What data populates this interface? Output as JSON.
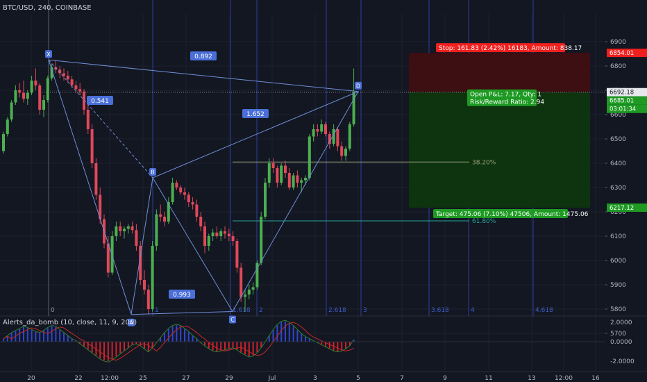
{
  "header": {
    "title": "BTC/USD, 240, COINBASE"
  },
  "colors": {
    "bg": "#131722",
    "grid": "#1e2230",
    "up": "#4caf50",
    "down": "#e0485a",
    "harmonic": "#6f8fd6",
    "fib_vertical": "#2d3fa0",
    "stop_zone": "#3d0e12",
    "target_zone": "#0d330f",
    "stop_tag": "#f0201e",
    "target_tag": "#1e9a23"
  },
  "chart_data": [
    {
      "type": "candlestick",
      "title": "BTC/USD, 240, COINBASE",
      "y_axis": {
        "ticks": [
          6900,
          6800,
          6700,
          6600,
          6500,
          6400,
          6300,
          6200,
          6100,
          6000,
          5900,
          5800,
          5700
        ],
        "range": [
          5700,
          6960
        ]
      },
      "x_axis": {
        "ticks": [
          "20",
          "22",
          "12:00",
          "25",
          "27",
          "29",
          "Jul",
          "3",
          "5",
          "7",
          "9",
          "11",
          "13",
          "12:00",
          "16"
        ]
      },
      "price_tags": [
        {
          "value": "6854.01",
          "style": "stop"
        },
        {
          "value": "6692.18",
          "style": "last"
        },
        {
          "value": "6685.01",
          "style": "current"
        },
        {
          "value": "03:01:34",
          "style": "current"
        },
        {
          "value": "6217.12",
          "style": "target"
        }
      ],
      "harmonic_pattern": {
        "points": [
          {
            "label": "X",
            "value": 6825
          },
          {
            "label": "A",
            "value": 5778
          },
          {
            "label": "B",
            "value": 6340
          },
          {
            "label": "C",
            "value": 5790
          },
          {
            "label": "D",
            "value": 6695
          }
        ],
        "ratios": [
          "0.892",
          "0.541",
          "1.652",
          "0.993"
        ]
      },
      "fib_levels": [
        {
          "label": "38.20%",
          "value": 6405
        },
        {
          "label": "61.80%",
          "value": 6163
        }
      ],
      "fib_time_labels": [
        "0",
        "1",
        "1.618",
        "2",
        "2.618",
        "3",
        "3.618",
        "4",
        "4.618"
      ],
      "position": {
        "entry": 6692.18,
        "stop_price": 6854.01,
        "target_price": 6217.12,
        "stop_text": "Stop: 161.83 (2.42%) 16183, Amount: 838.17",
        "open_pl_text": "Open P&L: 7.17, Qty: 1",
        "rr_text": "Risk/Reward Ratio: 2.94",
        "target_text": "Target: 475.06 (7.10%) 47506, Amount: 1475.06"
      },
      "candles": [
        [
          6450,
          6530,
          6440,
          6520
        ],
        [
          6520,
          6590,
          6510,
          6580
        ],
        [
          6580,
          6660,
          6570,
          6650
        ],
        [
          6650,
          6720,
          6640,
          6700
        ],
        [
          6700,
          6730,
          6670,
          6690
        ],
        [
          6690,
          6740,
          6650,
          6665
        ],
        [
          6665,
          6700,
          6640,
          6690
        ],
        [
          6690,
          6760,
          6680,
          6740
        ],
        [
          6740,
          6790,
          6700,
          6720
        ],
        [
          6720,
          6730,
          6600,
          6620
        ],
        [
          6620,
          6680,
          6590,
          6660
        ],
        [
          6660,
          6760,
          6650,
          6750
        ],
        [
          6750,
          6810,
          6740,
          6795
        ],
        [
          6795,
          6825,
          6770,
          6785
        ],
        [
          6785,
          6800,
          6750,
          6770
        ],
        [
          6770,
          6790,
          6740,
          6760
        ],
        [
          6760,
          6780,
          6730,
          6745
        ],
        [
          6745,
          6760,
          6710,
          6720
        ],
        [
          6720,
          6740,
          6690,
          6705
        ],
        [
          6705,
          6730,
          6680,
          6695
        ],
        [
          6695,
          6705,
          6600,
          6620
        ],
        [
          6620,
          6640,
          6520,
          6540
        ],
        [
          6540,
          6560,
          6380,
          6400
        ],
        [
          6400,
          6420,
          6250,
          6270
        ],
        [
          6270,
          6300,
          6150,
          6170
        ],
        [
          6170,
          6190,
          6050,
          6070
        ],
        [
          6070,
          6100,
          5930,
          5950
        ],
        [
          5950,
          6120,
          5940,
          6100
        ],
        [
          6100,
          6160,
          6080,
          6140
        ],
        [
          6140,
          6160,
          6100,
          6120
        ],
        [
          6120,
          6140,
          6090,
          6130
        ],
        [
          6130,
          6150,
          6110,
          6140
        ],
        [
          6140,
          6160,
          6110,
          6125
        ],
        [
          6125,
          6150,
          6040,
          6060
        ],
        [
          6060,
          6080,
          5900,
          5920
        ],
        [
          5920,
          5960,
          5860,
          5880
        ],
        [
          5880,
          5900,
          5778,
          5800
        ],
        [
          5800,
          6080,
          5790,
          6060
        ],
        [
          6060,
          6210,
          6040,
          6190
        ],
        [
          6190,
          6230,
          6160,
          6180
        ],
        [
          6180,
          6200,
          6140,
          6160
        ],
        [
          6160,
          6260,
          6150,
          6240
        ],
        [
          6240,
          6340,
          6230,
          6320
        ],
        [
          6320,
          6330,
          6290,
          6300
        ],
        [
          6300,
          6310,
          6270,
          6280
        ],
        [
          6280,
          6300,
          6250,
          6270
        ],
        [
          6270,
          6280,
          6220,
          6240
        ],
        [
          6240,
          6260,
          6210,
          6230
        ],
        [
          6230,
          6250,
          6160,
          6180
        ],
        [
          6180,
          6200,
          6120,
          6140
        ],
        [
          6140,
          6160,
          6030,
          6060
        ],
        [
          6060,
          6110,
          6040,
          6100
        ],
        [
          6100,
          6130,
          6080,
          6115
        ],
        [
          6115,
          6140,
          6090,
          6100
        ],
        [
          6100,
          6130,
          6080,
          6120
        ],
        [
          6120,
          6140,
          6090,
          6110
        ],
        [
          6110,
          6130,
          6080,
          6100
        ],
        [
          6100,
          6120,
          6060,
          6080
        ],
        [
          6080,
          6090,
          5950,
          5970
        ],
        [
          5970,
          5990,
          5830,
          5850
        ],
        [
          5850,
          5880,
          5790,
          5860
        ],
        [
          5860,
          5900,
          5840,
          5880
        ],
        [
          5880,
          5910,
          5860,
          5890
        ],
        [
          5890,
          6000,
          5880,
          5990
        ],
        [
          5990,
          6200,
          5980,
          6180
        ],
        [
          6180,
          6340,
          6170,
          6320
        ],
        [
          6320,
          6420,
          6300,
          6400
        ],
        [
          6400,
          6420,
          6360,
          6380
        ],
        [
          6380,
          6390,
          6300,
          6320
        ],
        [
          6320,
          6400,
          6310,
          6390
        ],
        [
          6390,
          6410,
          6340,
          6360
        ],
        [
          6360,
          6380,
          6290,
          6300
        ],
        [
          6300,
          6360,
          6290,
          6350
        ],
        [
          6350,
          6370,
          6300,
          6320
        ],
        [
          6320,
          6340,
          6280,
          6330
        ],
        [
          6330,
          6350,
          6310,
          6340
        ],
        [
          6340,
          6520,
          6330,
          6510
        ],
        [
          6510,
          6560,
          6490,
          6540
        ],
        [
          6540,
          6560,
          6510,
          6530
        ],
        [
          6530,
          6580,
          6520,
          6560
        ],
        [
          6560,
          6570,
          6510,
          6520
        ],
        [
          6520,
          6530,
          6460,
          6480
        ],
        [
          6480,
          6560,
          6470,
          6540
        ],
        [
          6540,
          6550,
          6450,
          6470
        ],
        [
          6470,
          6490,
          6410,
          6430
        ],
        [
          6430,
          6470,
          6410,
          6460
        ],
        [
          6460,
          6570,
          6450,
          6560
        ],
        [
          6560,
          6790,
          6550,
          6692.18
        ]
      ]
    },
    {
      "type": "histogram",
      "title": "Alerts_da_bomb (10, close, 11, 9, 200)",
      "y_axis": {
        "ticks": [
          "2.0000",
          "0.0000",
          "-2.0000"
        ],
        "range": [
          -2.6,
          2.6
        ]
      },
      "series": [
        {
          "values": [
            0.3,
            0.6,
            0.9,
            1.1,
            1.3,
            1.5,
            1.4,
            1.2,
            1.0,
            0.9,
            1.1,
            1.4,
            1.6,
            1.5,
            1.2,
            0.9,
            0.6,
            0.3,
            0.1,
            -0.2,
            -0.5,
            -0.8,
            -1.1,
            -1.4,
            -1.7,
            -1.9,
            -2.0,
            -1.8,
            -1.5,
            -1.2,
            -0.9,
            -0.6,
            -0.3,
            -0.2,
            -0.4,
            -0.7,
            -1.0,
            -0.6,
            -0.1,
            0.4,
            0.9,
            1.3,
            1.6,
            1.7,
            1.6,
            1.3,
            1.0,
            0.6,
            0.3,
            -0.1,
            -0.4,
            -0.7,
            -0.9,
            -1.0,
            -0.9,
            -0.8,
            -0.7,
            -0.6,
            -0.8,
            -1.1,
            -1.3,
            -1.5,
            -1.4,
            -1.1,
            -0.6,
            0.0,
            0.6,
            1.2,
            1.7,
            2.0,
            2.1,
            1.9,
            1.6,
            1.2,
            0.8,
            0.5,
            0.3,
            0.1,
            -0.1,
            -0.3,
            -0.5,
            -0.7,
            -0.9,
            -1.0,
            -0.9,
            -0.7,
            -0.4,
            0.2
          ]
        }
      ]
    }
  ]
}
